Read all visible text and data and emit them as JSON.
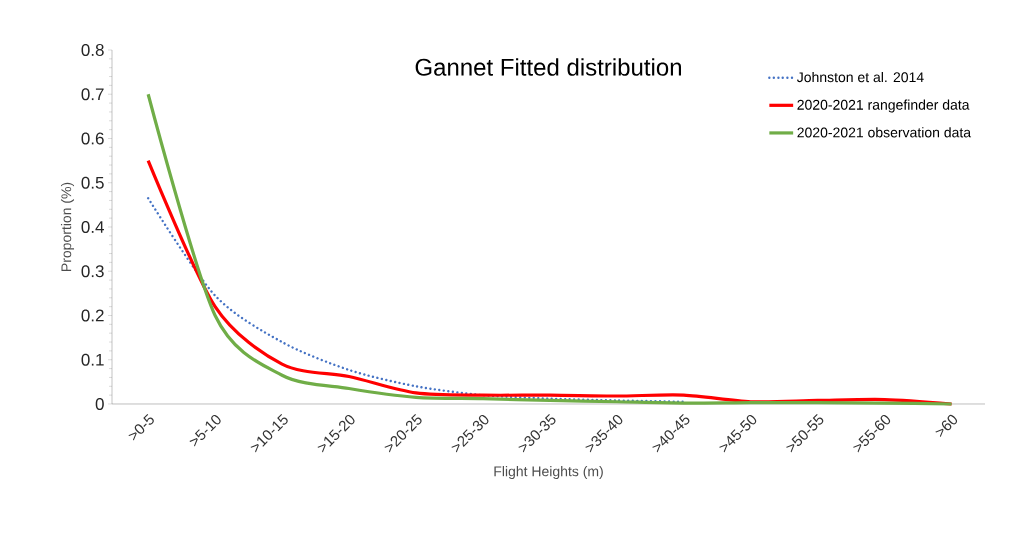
{
  "chart_data": {
    "type": "line",
    "title": "Gannet Fitted distribution",
    "xlabel": "Flight Heights (m)",
    "ylabel": "Proportion (%)",
    "categories": [
      ">0-5",
      ">5-10",
      ">10-15",
      ">15-20",
      ">20-25",
      ">25-30",
      ">30-35",
      ">35-40",
      ">40-45",
      ">45-50",
      ">50-55",
      ">55-60",
      ">60"
    ],
    "series": [
      {
        "name": "Johnston et al. 2014",
        "color": "#4472c4",
        "line_style": "dotted",
        "values": [
          0.465,
          0.245,
          0.14,
          0.077,
          0.04,
          0.02,
          0.012,
          0.008,
          0.005,
          null,
          null,
          null,
          null
        ]
      },
      {
        "name": "2020-2021 rangefinder data",
        "color": "#ff0000",
        "line_style": "solid",
        "values": [
          0.55,
          0.22,
          0.09,
          0.062,
          0.025,
          0.02,
          0.02,
          0.018,
          0.02,
          0.005,
          0.008,
          0.01,
          0
        ]
      },
      {
        "name": "2020-2021 observation data",
        "color": "#70ad47",
        "line_style": "solid",
        "values": [
          0.7,
          0.2,
          0.065,
          0.035,
          0.015,
          0.012,
          0.008,
          0.005,
          0.002,
          0.003,
          0.003,
          0.002,
          0
        ]
      }
    ],
    "ylim": [
      0,
      0.8
    ],
    "yticks": [
      0,
      0.1,
      0.2,
      0.3,
      0.4,
      0.5,
      0.6,
      0.7,
      0.8
    ],
    "legend": "top right"
  }
}
